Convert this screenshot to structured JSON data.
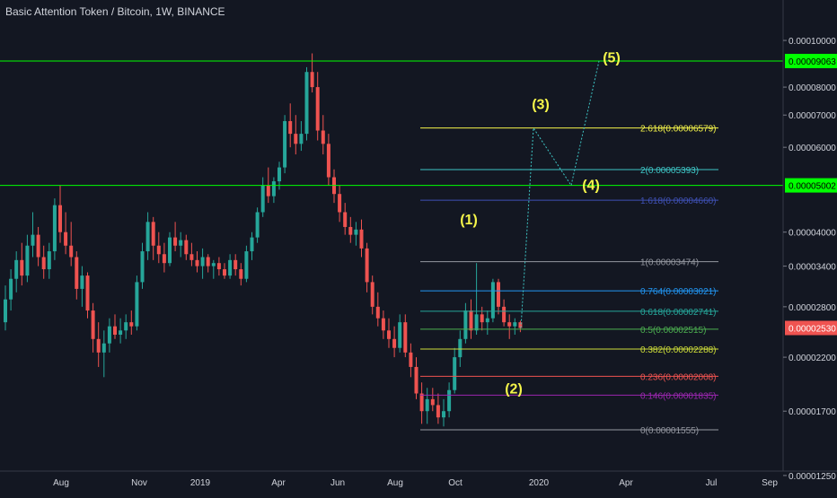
{
  "title": "Basic Attention Token / Bitcoin, 1W, BINANCE",
  "colors": {
    "background": "#131722",
    "text": "#d1d4dc",
    "up": "#26a69a",
    "down": "#ef5350",
    "horizontal_line": "#00ff00",
    "wave_label": "#f5f54a",
    "projection": "#3ec6c6"
  },
  "chart_data": {
    "type": "candlestick",
    "symbol": "BAT/BTC",
    "interval": "1W",
    "exchange": "BINANCE",
    "x_tick_labels": [
      "Aug",
      "Nov",
      "2019",
      "Apr",
      "Jun",
      "Aug",
      "Oct",
      "2020",
      "Apr",
      "Jul",
      "Sep"
    ],
    "y_tick_labels": [
      "0.00010000",
      "0.00008000",
      "0.00007000",
      "0.00006000",
      "0.00004000",
      "0.00003400",
      "0.00002800",
      "0.00002200",
      "0.00001700",
      "0.00001250"
    ],
    "y_scale": "log",
    "grid": false,
    "candles": [
      {
        "open": 2.6e-05,
        "high": 3.1e-05,
        "low": 2.5e-05,
        "close": 2.9e-05
      },
      {
        "open": 2.9e-05,
        "high": 3.35e-05,
        "low": 2.75e-05,
        "close": 3.2e-05
      },
      {
        "open": 3.2e-05,
        "high": 3.65e-05,
        "low": 3e-05,
        "close": 3.5e-05
      },
      {
        "open": 3.5e-05,
        "high": 3.8e-05,
        "low": 3.1e-05,
        "close": 3.25e-05
      },
      {
        "open": 3.25e-05,
        "high": 3.95e-05,
        "low": 3.15e-05,
        "close": 3.75e-05
      },
      {
        "open": 3.75e-05,
        "high": 4.4e-05,
        "low": 3.55e-05,
        "close": 3.95e-05
      },
      {
        "open": 3.95e-05,
        "high": 4.1e-05,
        "low": 3.4e-05,
        "close": 3.55e-05
      },
      {
        "open": 3.55e-05,
        "high": 3.75e-05,
        "low": 3.2e-05,
        "close": 3.35e-05
      },
      {
        "open": 3.35e-05,
        "high": 3.8e-05,
        "low": 3.2e-05,
        "close": 3.65e-05
      },
      {
        "open": 3.65e-05,
        "high": 4.7e-05,
        "low": 3.5e-05,
        "close": 4.55e-05
      },
      {
        "open": 4.55e-05,
        "high": 5e-05,
        "low": 3.8e-05,
        "close": 4e-05
      },
      {
        "open": 4e-05,
        "high": 4.4e-05,
        "low": 3.6e-05,
        "close": 3.75e-05
      },
      {
        "open": 3.75e-05,
        "high": 4.2e-05,
        "low": 3.4e-05,
        "close": 3.55e-05
      },
      {
        "open": 3.55e-05,
        "high": 3.65e-05,
        "low": 2.9e-05,
        "close": 3.05e-05
      },
      {
        "open": 3.05e-05,
        "high": 3.4e-05,
        "low": 2.8e-05,
        "close": 3.25e-05
      },
      {
        "open": 3.25e-05,
        "high": 3.3e-05,
        "low": 2.65e-05,
        "close": 2.75e-05
      },
      {
        "open": 2.75e-05,
        "high": 2.85e-05,
        "low": 2.25e-05,
        "close": 2.4e-05
      },
      {
        "open": 2.4e-05,
        "high": 2.6e-05,
        "low": 2.1e-05,
        "close": 2.25e-05
      },
      {
        "open": 2.25e-05,
        "high": 2.5e-05,
        "low": 2e-05,
        "close": 2.35e-05
      },
      {
        "open": 2.35e-05,
        "high": 2.65e-05,
        "low": 2.25e-05,
        "close": 2.55e-05
      },
      {
        "open": 2.55e-05,
        "high": 2.7e-05,
        "low": 2.4e-05,
        "close": 2.45e-05
      },
      {
        "open": 2.45e-05,
        "high": 2.65e-05,
        "low": 2.35e-05,
        "close": 2.5e-05
      },
      {
        "open": 2.5e-05,
        "high": 2.7e-05,
        "low": 2.4e-05,
        "close": 2.6e-05
      },
      {
        "open": 2.6e-05,
        "high": 2.75e-05,
        "low": 2.45e-05,
        "close": 2.55e-05
      },
      {
        "open": 2.55e-05,
        "high": 3.25e-05,
        "low": 2.5e-05,
        "close": 3.15e-05
      },
      {
        "open": 3.15e-05,
        "high": 3.8e-05,
        "low": 3.05e-05,
        "close": 3.65e-05
      },
      {
        "open": 3.65e-05,
        "high": 4.4e-05,
        "low": 3.5e-05,
        "close": 4.2e-05
      },
      {
        "open": 4.2e-05,
        "high": 4.3e-05,
        "low": 3.5e-05,
        "close": 3.75e-05
      },
      {
        "open": 3.75e-05,
        "high": 4e-05,
        "low": 3.45e-05,
        "close": 3.6e-05
      },
      {
        "open": 3.6e-05,
        "high": 3.8e-05,
        "low": 3.3e-05,
        "close": 3.45e-05
      },
      {
        "open": 3.45e-05,
        "high": 4e-05,
        "low": 3.4e-05,
        "close": 3.9e-05
      },
      {
        "open": 3.9e-05,
        "high": 4.2e-05,
        "low": 3.65e-05,
        "close": 3.75e-05
      },
      {
        "open": 3.75e-05,
        "high": 4e-05,
        "low": 3.55e-05,
        "close": 3.85e-05
      },
      {
        "open": 3.85e-05,
        "high": 3.95e-05,
        "low": 3.5e-05,
        "close": 3.6e-05
      },
      {
        "open": 3.6e-05,
        "high": 3.8e-05,
        "low": 3.4e-05,
        "close": 3.5e-05
      },
      {
        "open": 3.5e-05,
        "high": 3.65e-05,
        "low": 3.3e-05,
        "close": 3.4e-05
      },
      {
        "open": 3.4e-05,
        "high": 3.7e-05,
        "low": 3.2e-05,
        "close": 3.55e-05
      },
      {
        "open": 3.55e-05,
        "high": 3.6e-05,
        "low": 3.3e-05,
        "close": 3.4e-05
      },
      {
        "open": 3.4e-05,
        "high": 3.5e-05,
        "low": 3.2e-05,
        "close": 3.45e-05
      },
      {
        "open": 3.45e-05,
        "high": 3.55e-05,
        "low": 3.25e-05,
        "close": 3.35e-05
      },
      {
        "open": 3.35e-05,
        "high": 3.45e-05,
        "low": 3.2e-05,
        "close": 3.25e-05
      },
      {
        "open": 3.25e-05,
        "high": 3.6e-05,
        "low": 3.2e-05,
        "close": 3.5e-05
      },
      {
        "open": 3.5e-05,
        "high": 3.6e-05,
        "low": 3.25e-05,
        "close": 3.35e-05
      },
      {
        "open": 3.35e-05,
        "high": 3.45e-05,
        "low": 3.1e-05,
        "close": 3.2e-05
      },
      {
        "open": 3.2e-05,
        "high": 3.75e-05,
        "low": 3.15e-05,
        "close": 3.65e-05
      },
      {
        "open": 3.65e-05,
        "high": 4e-05,
        "low": 3.5e-05,
        "close": 3.9e-05
      },
      {
        "open": 3.9e-05,
        "high": 4.5e-05,
        "low": 3.8e-05,
        "close": 4.4e-05
      },
      {
        "open": 4.4e-05,
        "high": 5.2e-05,
        "low": 4.3e-05,
        "close": 5e-05
      },
      {
        "open": 5e-05,
        "high": 5.45e-05,
        "low": 4.6e-05,
        "close": 4.75e-05
      },
      {
        "open": 4.75e-05,
        "high": 5.2e-05,
        "low": 4.6e-05,
        "close": 5.1e-05
      },
      {
        "open": 5.1e-05,
        "high": 5.6e-05,
        "low": 4.9e-05,
        "close": 5.45e-05
      },
      {
        "open": 5.45e-05,
        "high": 7e-05,
        "low": 5.3e-05,
        "close": 6.8e-05
      },
      {
        "open": 6.8e-05,
        "high": 7.4e-05,
        "low": 6e-05,
        "close": 6.4e-05
      },
      {
        "open": 6.4e-05,
        "high": 7e-05,
        "low": 5.8e-05,
        "close": 6.1e-05
      },
      {
        "open": 6.1e-05,
        "high": 6.8e-05,
        "low": 5.9e-05,
        "close": 6.4e-05
      },
      {
        "open": 6.4e-05,
        "high": 8.8e-05,
        "low": 6.2e-05,
        "close": 8.6e-05
      },
      {
        "open": 8.6e-05,
        "high": 9.4e-05,
        "low": 7.8e-05,
        "close": 8e-05
      },
      {
        "open": 8e-05,
        "high": 8.6e-05,
        "low": 6.2e-05,
        "close": 6.5e-05
      },
      {
        "open": 6.5e-05,
        "high": 7e-05,
        "low": 5.8e-05,
        "close": 6.1e-05
      },
      {
        "open": 6.1e-05,
        "high": 6.4e-05,
        "low": 5e-05,
        "close": 5.2e-05
      },
      {
        "open": 5.2e-05,
        "high": 5.4e-05,
        "low": 4.6e-05,
        "close": 4.8e-05
      },
      {
        "open": 4.8e-05,
        "high": 5e-05,
        "low": 4.2e-05,
        "close": 4.4e-05
      },
      {
        "open": 4.4e-05,
        "high": 4.6e-05,
        "low": 3.95e-05,
        "close": 4.1e-05
      },
      {
        "open": 4.1e-05,
        "high": 4.3e-05,
        "low": 3.8e-05,
        "close": 3.95e-05
      },
      {
        "open": 3.95e-05,
        "high": 4.2e-05,
        "low": 3.75e-05,
        "close": 4.05e-05
      },
      {
        "open": 4.05e-05,
        "high": 4.25e-05,
        "low": 3.55e-05,
        "close": 3.7e-05
      },
      {
        "open": 3.7e-05,
        "high": 3.8e-05,
        "low": 3e-05,
        "close": 3.15e-05
      },
      {
        "open": 3.15e-05,
        "high": 3.25e-05,
        "low": 2.7e-05,
        "close": 2.8e-05
      },
      {
        "open": 2.8e-05,
        "high": 3e-05,
        "low": 2.55e-05,
        "close": 2.65e-05
      },
      {
        "open": 2.65e-05,
        "high": 2.75e-05,
        "low": 2.4e-05,
        "close": 2.5e-05
      },
      {
        "open": 2.5e-05,
        "high": 2.65e-05,
        "low": 2.3e-05,
        "close": 2.4e-05
      },
      {
        "open": 2.4e-05,
        "high": 2.55e-05,
        "low": 2.2e-05,
        "close": 2.3e-05
      },
      {
        "open": 2.3e-05,
        "high": 2.7e-05,
        "low": 2.25e-05,
        "close": 2.6e-05
      },
      {
        "open": 2.6e-05,
        "high": 2.7e-05,
        "low": 2.2e-05,
        "close": 2.25e-05
      },
      {
        "open": 2.25e-05,
        "high": 2.35e-05,
        "low": 2e-05,
        "close": 2.1e-05
      },
      {
        "open": 2.1e-05,
        "high": 2.2e-05,
        "low": 1.8e-05,
        "close": 1.85e-05
      },
      {
        "open": 1.85e-05,
        "high": 1.95e-05,
        "low": 1.6e-05,
        "close": 1.7e-05
      },
      {
        "open": 1.7e-05,
        "high": 1.9e-05,
        "low": 1.6e-05,
        "close": 1.8e-05
      },
      {
        "open": 1.8e-05,
        "high": 1.9e-05,
        "low": 1.7e-05,
        "close": 1.75e-05
      },
      {
        "open": 1.75e-05,
        "high": 1.85e-05,
        "low": 1.6e-05,
        "close": 1.65e-05
      },
      {
        "open": 1.65e-05,
        "high": 1.8e-05,
        "low": 1.58e-05,
        "close": 1.7e-05
      },
      {
        "open": 1.7e-05,
        "high": 1.95e-05,
        "low": 1.65e-05,
        "close": 1.88e-05
      },
      {
        "open": 1.88e-05,
        "high": 2.3e-05,
        "low": 1.85e-05,
        "close": 2.2e-05
      },
      {
        "open": 2.2e-05,
        "high": 2.5e-05,
        "low": 2.1e-05,
        "close": 2.4e-05
      },
      {
        "open": 2.4e-05,
        "high": 2.85e-05,
        "low": 2.35e-05,
        "close": 2.75e-05
      },
      {
        "open": 2.75e-05,
        "high": 2.9e-05,
        "low": 2.4e-05,
        "close": 2.5e-05
      },
      {
        "open": 2.5e-05,
        "high": 3.45e-05,
        "low": 2.45e-05,
        "close": 2.7e-05
      },
      {
        "open": 2.7e-05,
        "high": 2.8e-05,
        "low": 2.5e-05,
        "close": 2.6e-05
      },
      {
        "open": 2.6e-05,
        "high": 2.75e-05,
        "low": 2.45e-05,
        "close": 2.65e-05
      },
      {
        "open": 2.65e-05,
        "high": 3.2e-05,
        "low": 2.6e-05,
        "close": 3.15e-05
      },
      {
        "open": 3.15e-05,
        "high": 3.2e-05,
        "low": 2.7e-05,
        "close": 2.8e-05
      },
      {
        "open": 2.8e-05,
        "high": 2.9e-05,
        "low": 2.55e-05,
        "close": 2.6e-05
      },
      {
        "open": 2.6e-05,
        "high": 2.7e-05,
        "low": 2.4e-05,
        "close": 2.55e-05
      },
      {
        "open": 2.55e-05,
        "high": 2.65e-05,
        "low": 2.45e-05,
        "close": 2.6e-05
      },
      {
        "open": 2.6e-05,
        "high": 2.62e-05,
        "low": 2.48e-05,
        "close": 2.53e-05
      }
    ],
    "horizontal_lines": [
      {
        "price": 9.063e-05,
        "label": "0.00009063"
      },
      {
        "price": 5.002e-05,
        "label": "0.00005002"
      }
    ],
    "last_price": {
      "price": 2.53e-05,
      "label": "0.00002530"
    },
    "fibonacci_levels": [
      {
        "ratio": "2.618",
        "price": 6.579e-05,
        "label": "2.618(0.00006579)",
        "color": "#f5f54a"
      },
      {
        "ratio": "2",
        "price": 5.393e-05,
        "label": "2(0.00005393)",
        "color": "#3ec6c6"
      },
      {
        "ratio": "1.618",
        "price": 4.66e-05,
        "label": "1.618(0.00004660)",
        "color": "#3f51b5"
      },
      {
        "ratio": "1",
        "price": 3.474e-05,
        "label": "1(0.00003474)",
        "color": "#9598a1"
      },
      {
        "ratio": "0.764",
        "price": 3.021e-05,
        "label": "0.764(0.00003021)",
        "color": "#2196f3"
      },
      {
        "ratio": "0.618",
        "price": 2.741e-05,
        "label": "0.618(0.00002741)",
        "color": "#26a69a"
      },
      {
        "ratio": "0.5",
        "price": 2.515e-05,
        "label": "0.5(0.00002515)",
        "color": "#4caf50"
      },
      {
        "ratio": "0.382",
        "price": 2.288e-05,
        "label": "0.382(0.00002288)",
        "color": "#cddc39"
      },
      {
        "ratio": "0.236",
        "price": 2.008e-05,
        "label": "0.236(0.00002008)",
        "color": "#ef5350"
      },
      {
        "ratio": "0.146",
        "price": 1.835e-05,
        "label": "0.146(0.00001835)",
        "color": "#9c27b0"
      },
      {
        "ratio": "0",
        "price": 1.555e-05,
        "label": "0(0.00001555)",
        "color": "#9598a1"
      }
    ],
    "wave_labels": [
      {
        "label": "(1)",
        "price": 4.15e-05
      },
      {
        "label": "(2)",
        "price": 1.85e-05
      },
      {
        "label": "(3)",
        "price": 7.2e-05
      },
      {
        "label": "(4)",
        "price": 4.9e-05
      },
      {
        "label": "(5)",
        "price": 9e-05
      }
    ],
    "projection_path": [
      2.53e-05,
      6.579e-05,
      5.002e-05,
      9.063e-05
    ]
  }
}
